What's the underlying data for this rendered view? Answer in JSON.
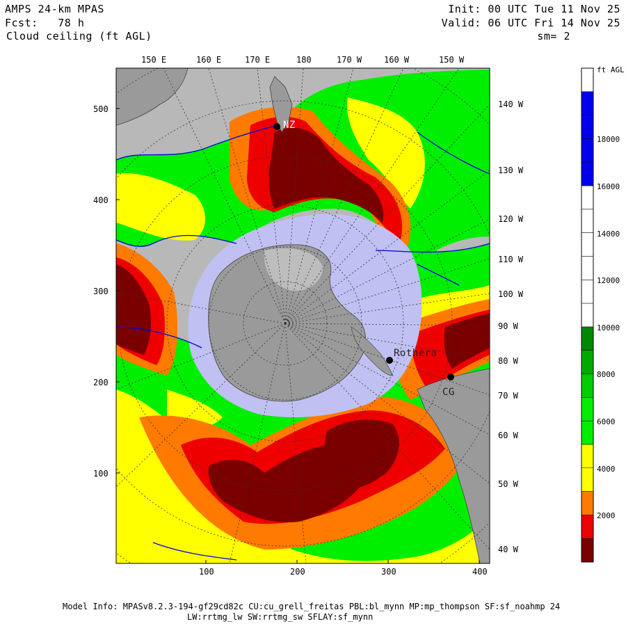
{
  "header": {
    "model_title": "AMPS 24-km MPAS",
    "forecast_label": "Fcst:   78 h",
    "field_name": "Cloud ceiling (ft AGL)",
    "init_time": "Init: 00 UTC Tue 11 Nov 25",
    "valid_time": "Valid: 06 UTC Fri 14 Nov 25",
    "smoothing": "sm= 2"
  },
  "map": {
    "top_lon_labels": [
      "150 E",
      "160 E",
      "170 E",
      "180",
      "170 W",
      "160 W",
      "150 W"
    ],
    "right_lon_labels": [
      "140 W",
      "130 W",
      "120 W",
      "110 W",
      "100 W",
      "90 W",
      "80 W",
      "70 W",
      "60 W",
      "50 W",
      "40 W"
    ],
    "y_axis_ticks": [
      "500",
      "400",
      "300",
      "200",
      "100"
    ],
    "x_axis_ticks": [
      "100",
      "200",
      "300",
      "400"
    ],
    "station_labels": [
      "NZ",
      "Rothera",
      "CG"
    ],
    "colors": {
      "ocean_gray": "#b8b8b8",
      "ice_lavender": "#c0c0f2",
      "land_gray": "#9a9a9a",
      "contour_blue": "#0000dd"
    }
  },
  "colorbar": {
    "units": "ft AGL",
    "labels": [
      "18000",
      "16000",
      "14000",
      "12000",
      "10000",
      "8000",
      "6000",
      "4000",
      "2000"
    ],
    "bins": [
      {
        "min": 0,
        "max": 1000,
        "color": "#7a0000"
      },
      {
        "min": 1000,
        "max": 2000,
        "color": "#ee0000"
      },
      {
        "min": 2000,
        "max": 3000,
        "color": "#ff7a00"
      },
      {
        "min": 3000,
        "max": 4000,
        "color": "#ffff00"
      },
      {
        "min": 4000,
        "max": 5000,
        "color": "#ffff00"
      },
      {
        "min": 5000,
        "max": 6000,
        "color": "#00ee00"
      },
      {
        "min": 6000,
        "max": 7000,
        "color": "#00ee00"
      },
      {
        "min": 7000,
        "max": 8000,
        "color": "#00cc00"
      },
      {
        "min": 8000,
        "max": 9000,
        "color": "#00aa00"
      },
      {
        "min": 9000,
        "max": 10000,
        "color": "#008800"
      },
      {
        "min": 10000,
        "max": 16000,
        "color": "#ffffff"
      },
      {
        "min": 16000,
        "max": 20000,
        "color": "#0000ee"
      }
    ]
  },
  "footer": {
    "line1": "Model Info: MPASv8.2.3-194-gf29cd82c CU:cu_grell_freitas PBL:bl_mynn MP:mp_thompson SF:sf_noahmp 24",
    "line2": "LW:rrtmg_lw SW:rrtmg_sw SFLAY:sf_mynn"
  }
}
